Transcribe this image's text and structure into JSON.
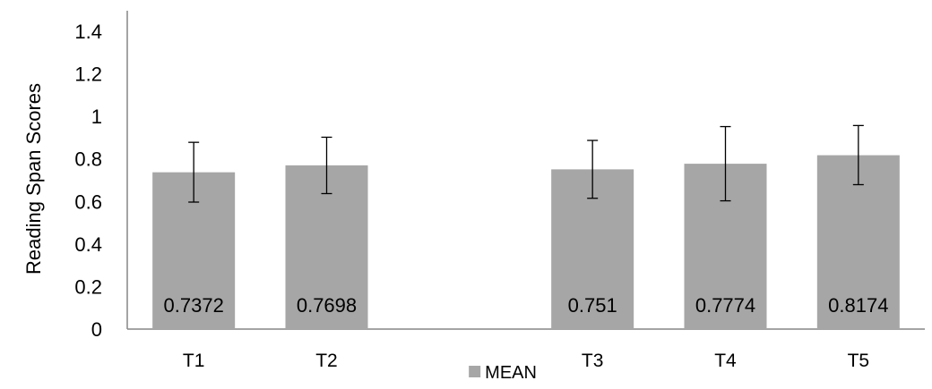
{
  "chart_data": {
    "type": "bar",
    "categories": [
      "T1",
      "T2",
      "",
      "T3",
      "T4",
      "T5"
    ],
    "series": [
      {
        "name": "MEAN",
        "values": [
          0.7372,
          0.7698,
          null,
          0.751,
          0.7774,
          0.8174
        ],
        "error_low": [
          0.597,
          0.637,
          null,
          0.615,
          0.603,
          0.679
        ],
        "error_high": [
          0.878,
          0.902,
          null,
          0.887,
          0.952,
          0.957
        ],
        "data_labels": [
          "0.7372",
          "0.7698",
          "",
          "0.751",
          "0.7774",
          "0.8174"
        ]
      }
    ],
    "ylabel": "Reading  Span Scores",
    "xlabel": "",
    "ylim": [
      0,
      1.4
    ],
    "yticks": [
      0,
      0.2,
      0.4,
      0.6,
      0.8,
      1,
      1.2,
      1.4
    ],
    "ytick_labels": [
      "0",
      "0.2",
      "0.4",
      "0.6",
      "0.8",
      "1",
      "1.2",
      "1.4"
    ],
    "legend": {
      "placement": "bottom",
      "entries": [
        "MEAN"
      ]
    },
    "grid": false,
    "colors": {
      "bar": "#a6a6a6",
      "axis": "#868686",
      "error_bar": "#000000"
    }
  }
}
